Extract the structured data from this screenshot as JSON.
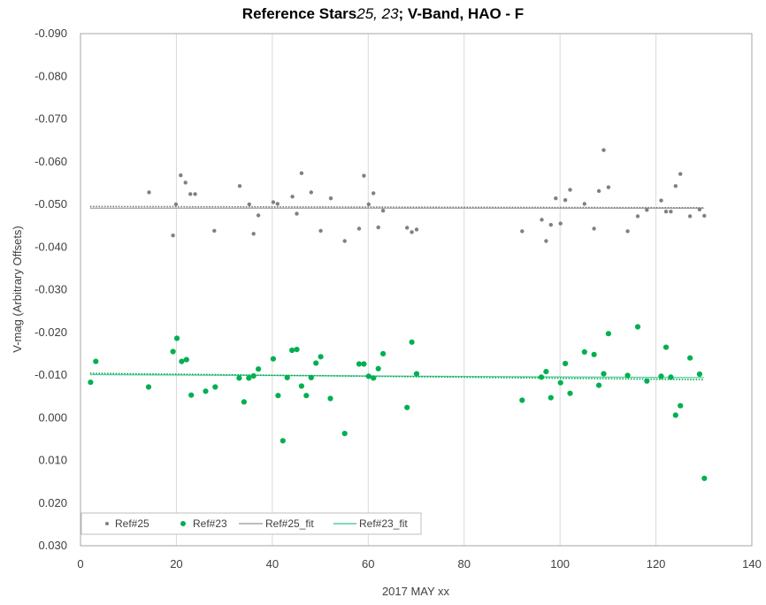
{
  "chart_data": {
    "type": "scatter",
    "title_parts": [
      "Reference Stars ",
      "25, 23",
      "; V-Band, HAO - F"
    ],
    "xlabel": "2017 MAY xx",
    "ylabel": "V-mag (Arbitrary Offsets)",
    "xlim": [
      0,
      140
    ],
    "ylim": [
      -0.09,
      0.03
    ],
    "y_inverted": true,
    "x_ticks": [
      0,
      20,
      40,
      60,
      80,
      100,
      120,
      140
    ],
    "x_tick_labels": [
      "0",
      "20",
      "40",
      "60",
      "80",
      "100",
      "120",
      "140"
    ],
    "y_ticks": [
      -0.09,
      -0.08,
      -0.07,
      -0.06,
      -0.05,
      -0.04,
      -0.03,
      -0.02,
      -0.01,
      0.0,
      0.01,
      0.02,
      0.03
    ],
    "y_tick_labels": [
      "-0.090",
      "-0.080",
      "-0.070",
      "-0.060",
      "-0.050",
      "-0.040",
      "-0.030",
      "-0.020",
      "-0.010",
      "0.000",
      "0.010",
      "0.020",
      "0.030"
    ],
    "grid": "vertical major gridlines",
    "legend_position": "bottom-left",
    "legend": [
      "Ref#25",
      "Ref#23",
      "Ref#25_fit",
      "Ref#23_fit"
    ],
    "series": [
      {
        "name": "Ref#25",
        "kind": "scatter",
        "color": "#808080",
        "x": [
          14.3,
          19.3,
          19.9,
          20.9,
          21.9,
          22.9,
          23.9,
          27.9,
          33.2,
          35.2,
          36.1,
          37.1,
          40.2,
          41.1,
          44.2,
          45.1,
          46.1,
          48.1,
          50.1,
          52.2,
          55.1,
          58.1,
          59.1,
          60.1,
          61.1,
          62.1,
          63.1,
          68.1,
          69.1,
          70.1,
          92.1,
          96.2,
          97.1,
          98.1,
          99.1,
          100.1,
          101.1,
          102.1,
          105.1,
          107.1,
          108.1,
          109.1,
          110.1,
          114.1,
          116.2,
          118.1,
          121.1,
          122.1,
          123.1,
          124.1,
          125.1,
          127.1,
          129.1,
          130.1
        ],
        "y": [
          -0.0528,
          -0.0427,
          -0.05,
          -0.0568,
          -0.0551,
          -0.0524,
          -0.0524,
          -0.0438,
          -0.0543,
          -0.05,
          -0.0431,
          -0.0474,
          -0.0505,
          -0.0501,
          -0.0518,
          -0.0478,
          -0.0573,
          -0.0528,
          -0.0438,
          -0.0514,
          -0.0414,
          -0.0443,
          -0.0567,
          -0.05,
          -0.0526,
          -0.0446,
          -0.0485,
          -0.0445,
          -0.0435,
          -0.0441,
          -0.0437,
          -0.0464,
          -0.0414,
          -0.0452,
          -0.0514,
          -0.0455,
          -0.051,
          -0.0534,
          -0.0501,
          -0.0443,
          -0.0531,
          -0.0627,
          -0.054,
          -0.0437,
          -0.0472,
          -0.0487,
          -0.0509,
          -0.0483,
          -0.0483,
          -0.0543,
          -0.0571,
          -0.0472,
          -0.0488,
          -0.0473
        ]
      },
      {
        "name": "Ref#23",
        "kind": "scatter",
        "color": "#00B050",
        "x": [
          2.1,
          3.2,
          14.2,
          19.3,
          20.1,
          21.1,
          22.1,
          23.1,
          26.1,
          28.1,
          33.1,
          34.1,
          35.1,
          36.1,
          37.1,
          40.2,
          41.2,
          42.2,
          43.1,
          44.1,
          45.1,
          46.1,
          47.1,
          48.1,
          49.1,
          50.1,
          52.1,
          55.1,
          58.1,
          59.1,
          60.1,
          61.1,
          62.1,
          63.1,
          68.1,
          69.1,
          70.1,
          92.1,
          96.1,
          97.1,
          98.1,
          100.1,
          101.1,
          102.1,
          105.1,
          107.1,
          108.1,
          109.1,
          110.1,
          114.1,
          116.2,
          118.1,
          121.1,
          122.1,
          123.1,
          124.1,
          125.1,
          127.1,
          129.1,
          130.1
        ],
        "y": [
          -0.0083,
          -0.0132,
          -0.0072,
          -0.0155,
          -0.0186,
          -0.0132,
          -0.0136,
          -0.0053,
          -0.0062,
          -0.0072,
          -0.0093,
          -0.0037,
          -0.0093,
          -0.0098,
          -0.0114,
          -0.0138,
          -0.0052,
          0.0054,
          -0.0094,
          -0.0158,
          -0.016,
          -0.0074,
          -0.0052,
          -0.0094,
          -0.0128,
          -0.0143,
          -0.0045,
          0.0037,
          -0.0126,
          -0.0126,
          -0.0097,
          -0.0093,
          -0.0115,
          -0.015,
          -0.0024,
          -0.0177,
          -0.0103,
          -0.0041,
          -0.0095,
          -0.0108,
          -0.0047,
          -0.0082,
          -0.0127,
          -0.0057,
          -0.0154,
          -0.0148,
          -0.0076,
          -0.0103,
          -0.0197,
          -0.0099,
          -0.0213,
          -0.0086,
          -0.0097,
          -0.0165,
          -0.0095,
          -0.0006,
          -0.0028,
          -0.014,
          -0.0102,
          0.0142
        ]
      },
      {
        "name": "Ref#25_fit",
        "kind": "line",
        "style": "solid",
        "color": "#A6A6A6",
        "x": [
          2,
          130
        ],
        "y": [
          -0.0491,
          -0.0491
        ]
      },
      {
        "name": "Ref#23_fit",
        "kind": "line",
        "style": "solid",
        "color": "#5BC8A0",
        "x": [
          2,
          130
        ],
        "y": [
          -0.0101,
          -0.0094
        ]
      },
      {
        "name": "",
        "kind": "line",
        "style": "dotted",
        "color": "#808080",
        "x": [
          2,
          130
        ],
        "y": [
          -0.0495,
          -0.0492
        ]
      },
      {
        "name": "",
        "kind": "line",
        "style": "dotted",
        "color": "#00B050",
        "x": [
          2,
          130
        ],
        "y": [
          -0.0104,
          -0.0089
        ]
      }
    ]
  }
}
